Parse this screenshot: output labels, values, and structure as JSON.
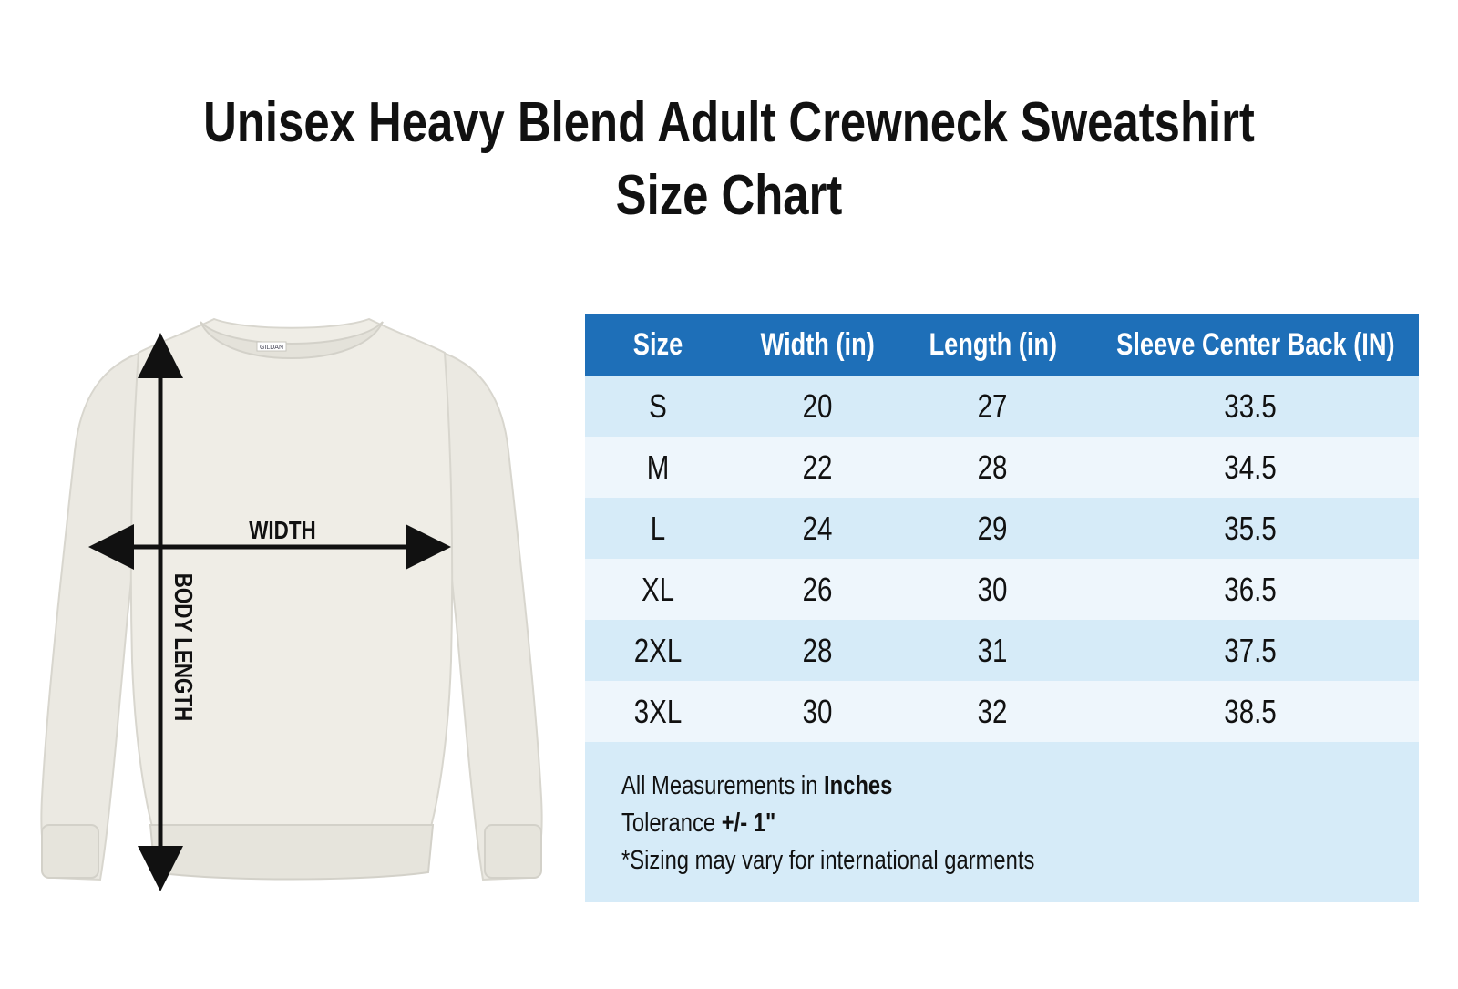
{
  "title": {
    "line1": "Unisex Heavy Blend Adult Crewneck Sweatshirt",
    "line2": "Size Chart"
  },
  "diagram": {
    "width_label": "WIDTH",
    "length_label": "BODY LENGTH",
    "garment_color": "#eceae3",
    "tag_text": "GILDAN"
  },
  "table": {
    "header_color": "#1e6fb8",
    "row_color_a": "#d6ebf8",
    "row_color_b": "#eef6fc",
    "headers": [
      "Size",
      "Width (in)",
      "Length (in)",
      "Sleeve Center Back (IN)"
    ],
    "rows": [
      [
        "S",
        "20",
        "27",
        "33.5"
      ],
      [
        "M",
        "22",
        "28",
        "34.5"
      ],
      [
        "L",
        "24",
        "29",
        "35.5"
      ],
      [
        "XL",
        "26",
        "30",
        "36.5"
      ],
      [
        "2XL",
        "28",
        "31",
        "37.5"
      ],
      [
        "3XL",
        "30",
        "32",
        "38.5"
      ]
    ]
  },
  "notes": {
    "measurement_prefix": "All Measurements in ",
    "measurement_unit": "Inches",
    "tolerance_prefix": "Tolerance ",
    "tolerance_value": "+/- 1\"",
    "disclaimer": "*Sizing may vary for international garments"
  }
}
